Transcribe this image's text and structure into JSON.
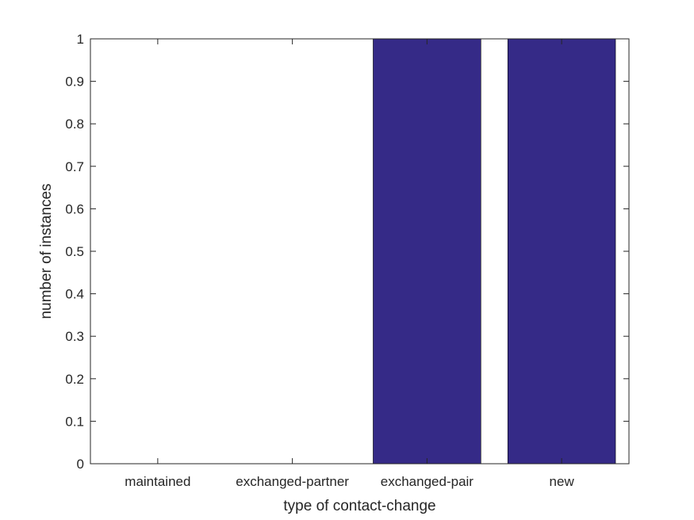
{
  "chart_data": {
    "type": "bar",
    "categories": [
      "maintained",
      "exchanged-partner",
      "exchanged-pair",
      "new"
    ],
    "values": [
      0,
      0,
      1,
      1
    ],
    "title": "",
    "xlabel": "type of contact-change",
    "ylabel": "number of instances",
    "ylim": [
      0,
      1
    ],
    "yticks": [
      "0",
      "0.1",
      "0.2",
      "0.3",
      "0.4",
      "0.5",
      "0.6",
      "0.7",
      "0.8",
      "0.9",
      "1"
    ],
    "grid": false,
    "bar_color": "#352a87"
  }
}
